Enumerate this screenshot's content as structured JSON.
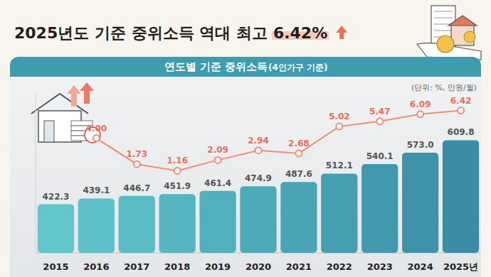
{
  "chart_data": {
    "type": "bar",
    "title": "2025년도 기준 중위소득 역대 최고",
    "title_highlight": "6.42%",
    "subtitle": "연도별 기준 중위소득",
    "subtitle_note": "(4인가구 기준)",
    "unit_note": "(단위: %, 만원/월)",
    "categories": [
      "2015",
      "2016",
      "2017",
      "2018",
      "2019",
      "2020",
      "2021",
      "2022",
      "2023",
      "2024",
      "2025년"
    ],
    "series": [
      {
        "type": "bar",
        "colors": [
          "#62c6cc",
          "#5ec0c8",
          "#5abbc4",
          "#56b5c0",
          "#52afbc",
          "#4eaab9",
          "#4aa4b5",
          "#469eb1",
          "#4299ad",
          "#3e93a9",
          "#3a8da5"
        ],
        "values": [
          422.3,
          439.1,
          446.7,
          451.9,
          461.4,
          474.9,
          487.6,
          512.1,
          540.1,
          573.0,
          609.8
        ],
        "value_labels": [
          "422.3",
          "439.1",
          "446.7",
          "451.9",
          "461.4",
          "474.9",
          "487.6",
          "512.1",
          "540.1",
          "573.0",
          "609.8"
        ]
      },
      {
        "type": "line",
        "axis": "y2",
        "color": "#ee8e7b",
        "marker": "circle",
        "values": [
          null,
          4.0,
          1.73,
          1.16,
          2.09,
          2.94,
          2.68,
          5.02,
          5.47,
          6.09,
          6.42
        ],
        "value_labels": [
          null,
          "4.00",
          "1.73",
          "1.16",
          "2.09",
          "2.94",
          "2.68",
          "5.02",
          "5.47",
          "6.09",
          "6.42"
        ]
      }
    ],
    "ylim": [
      280,
      750
    ],
    "y2lim": [
      -6,
      8
    ],
    "data_labels": true,
    "tick_labels": "x",
    "grid": false
  }
}
